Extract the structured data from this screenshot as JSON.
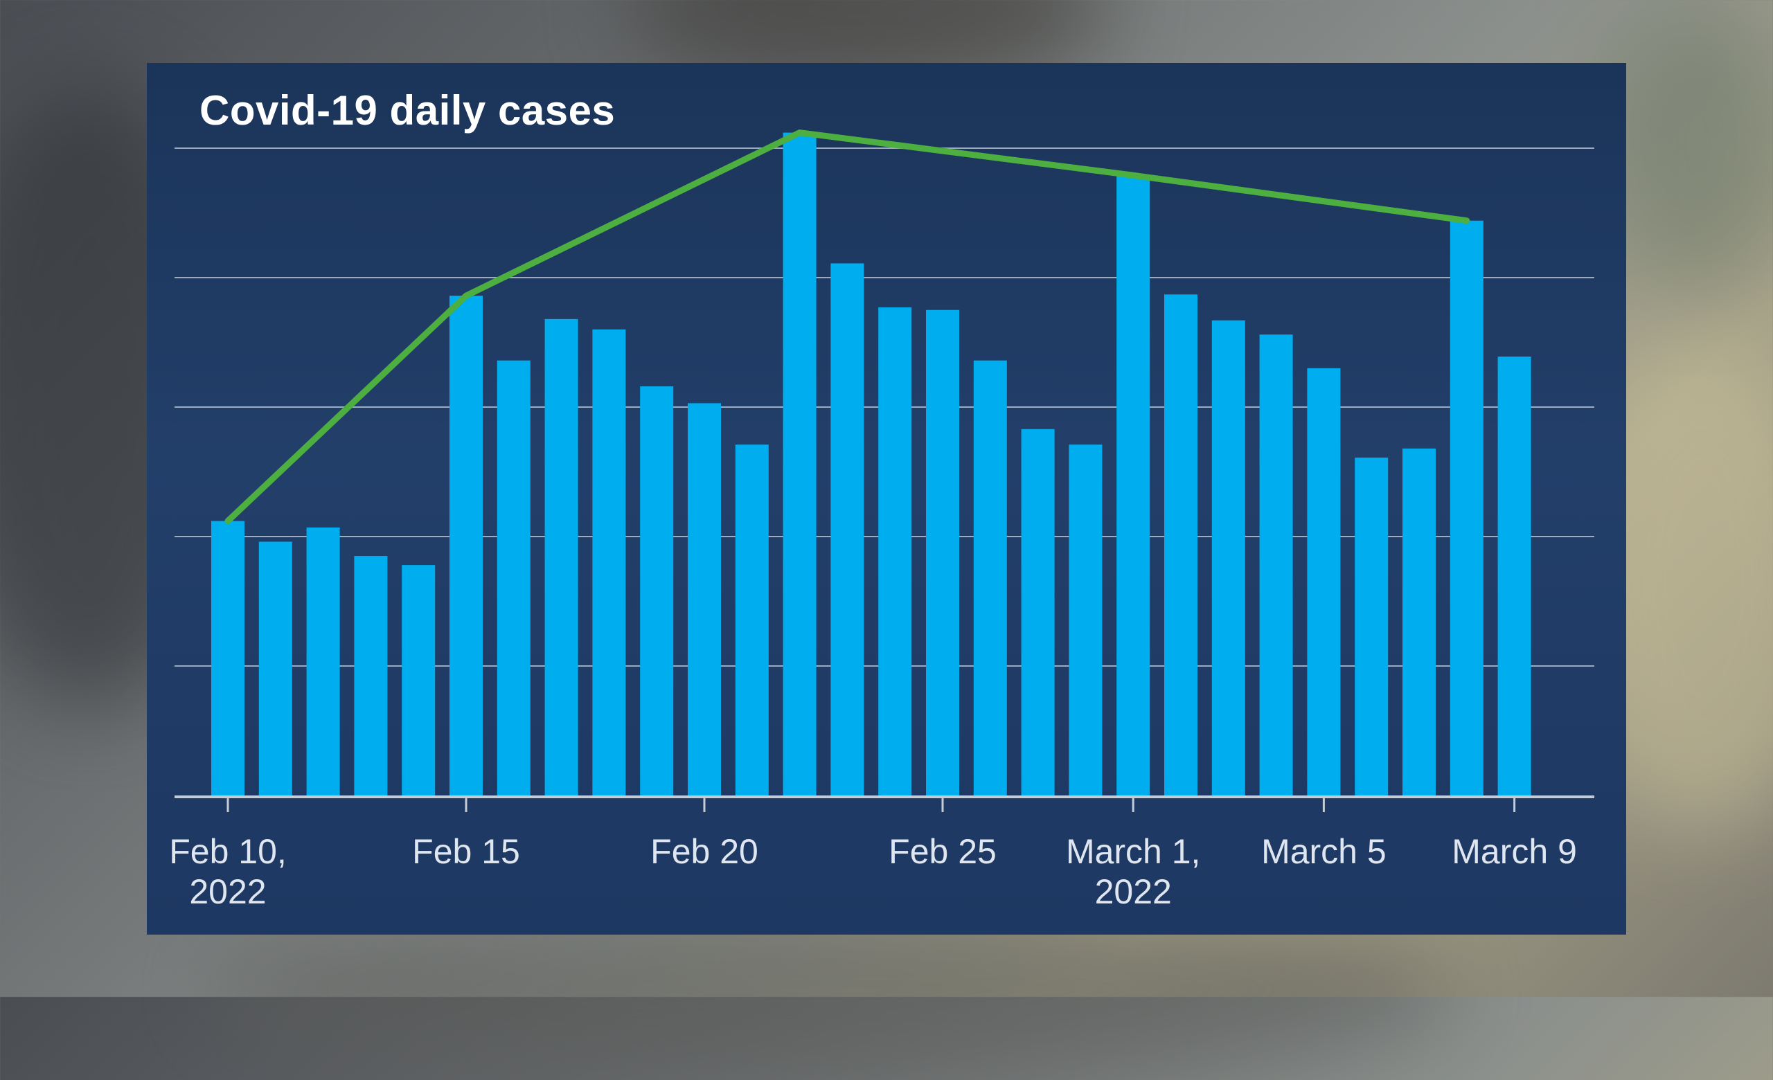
{
  "chart_data": {
    "type": "bar",
    "title": "Covid-19 daily cases",
    "xlabel": "",
    "ylabel": "",
    "x_tick_labels": [
      {
        "label": [
          "Feb 10,",
          "2022"
        ],
        "index": 0
      },
      {
        "label": [
          "Feb 15"
        ],
        "index": 5
      },
      {
        "label": [
          "Feb 20"
        ],
        "index": 10
      },
      {
        "label": [
          "Feb 25"
        ],
        "index": 15
      },
      {
        "label": [
          "March 1,",
          "2022"
        ],
        "index": 19
      },
      {
        "label": [
          "March 5"
        ],
        "index": 23
      },
      {
        "label": [
          "March 9"
        ],
        "index": 27
      }
    ],
    "categories": [
      "Feb 10",
      "Feb 11",
      "Feb 12",
      "Feb 13",
      "Feb 14",
      "Feb 15",
      "Feb 16",
      "Feb 17",
      "Feb 18",
      "Feb 19",
      "Feb 20",
      "Feb 21",
      "Feb 22",
      "Feb 23",
      "Feb 24",
      "Feb 25",
      "Feb 26",
      "Feb 27",
      "Feb 28",
      "Mar 1",
      "Mar 2",
      "Mar 3",
      "Mar 4",
      "Mar 5",
      "Mar 6",
      "Mar 7",
      "Mar 8",
      "Mar 9"
    ],
    "values": [
      2.12,
      1.96,
      2.07,
      1.85,
      1.78,
      3.86,
      3.36,
      3.68,
      3.6,
      3.16,
      3.03,
      2.71,
      5.12,
      4.11,
      3.77,
      3.75,
      3.36,
      2.83,
      2.71,
      4.79,
      3.87,
      3.67,
      3.56,
      3.3,
      2.61,
      2.68,
      4.44,
      3.39
    ],
    "trend_line": {
      "indices": [
        0,
        5,
        12,
        19,
        26
      ],
      "values": [
        2.12,
        3.86,
        5.12,
        4.79,
        4.44
      ]
    },
    "ylim": [
      0,
      5
    ],
    "y_gridlines": [
      1,
      2,
      3,
      4,
      5
    ],
    "grid": true,
    "legend": "none",
    "colors": {
      "bar": "#00aeef",
      "trend": "#4caf3f",
      "grid": "#c9d1dc",
      "axis": "#c4ccd6",
      "panel": "#1f3a63"
    }
  }
}
